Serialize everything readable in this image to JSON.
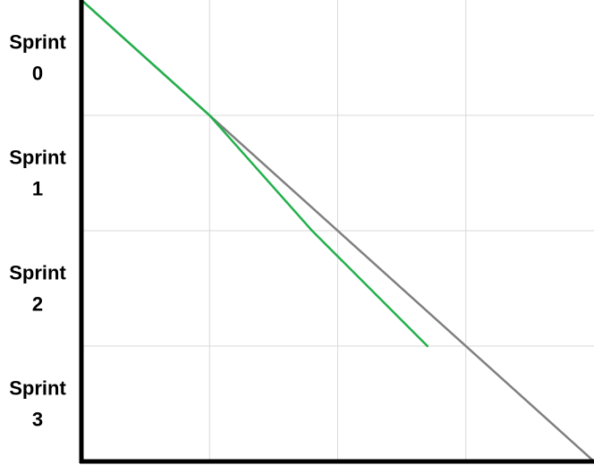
{
  "chart_data": {
    "type": "line",
    "title": "",
    "xlabel": "",
    "ylabel": "",
    "y_categories": [
      {
        "line1": "Sprint",
        "line2": "0"
      },
      {
        "line1": "Sprint",
        "line2": "1"
      },
      {
        "line1": "Sprint",
        "line2": "2"
      },
      {
        "line1": "Sprint",
        "line2": "3"
      }
    ],
    "xlim": [
      0,
      4
    ],
    "ylim": [
      0,
      4
    ],
    "y_inverted": true,
    "x_tick_labels_visible": false,
    "grid": true,
    "legend": "none",
    "series": [
      {
        "color": "#808080",
        "points": [
          {
            "x": 0,
            "y": 0
          },
          {
            "x": 4,
            "y": 4
          }
        ]
      },
      {
        "color": "#22b04c",
        "points": [
          {
            "x": 0,
            "y": 0
          },
          {
            "x": 1,
            "y": 1
          },
          {
            "x": 1.8,
            "y": 2
          },
          {
            "x": 2.7,
            "y": 3
          }
        ]
      }
    ],
    "colors": {
      "grid": "#d9d9d9",
      "axis": "#000000"
    }
  }
}
